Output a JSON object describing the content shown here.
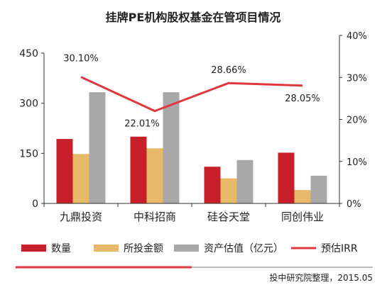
{
  "chart_data": {
    "type": "bar",
    "title": "挂牌PE机构股权基金在管项目情况",
    "categories": [
      "九鼎投资",
      "中科招商",
      "硅谷天堂",
      "同创伟业"
    ],
    "series": [
      {
        "name": "数量",
        "kind": "bar",
        "axis": "left",
        "color": "#c8202a",
        "values": [
          193,
          200,
          110,
          152
        ]
      },
      {
        "name": "所投金额",
        "kind": "bar",
        "axis": "left",
        "color": "#e7b968",
        "values": [
          148,
          165,
          75,
          40
        ]
      },
      {
        "name": "资产估值（亿元）",
        "kind": "bar",
        "axis": "left",
        "color": "#a8a8a8",
        "values": [
          333,
          333,
          130,
          83
        ]
      },
      {
        "name": "预估IRR",
        "kind": "line",
        "axis": "right",
        "color": "#e0383e",
        "values": [
          30.1,
          22.01,
          28.66,
          28.05
        ],
        "labels": [
          "30.10%",
          "22.01%",
          "28.66%",
          "28.05%"
        ]
      }
    ],
    "y_left": {
      "min": 0,
      "max": 450,
      "ticks": [
        0,
        150,
        300,
        450
      ],
      "tick_labels": [
        "0",
        "150",
        "300",
        "450"
      ]
    },
    "y_right": {
      "min": 0,
      "max": 40,
      "ticks": [
        0,
        10,
        20,
        30,
        40
      ],
      "tick_labels": [
        "0%",
        "10%",
        "20%",
        "30%",
        "40%"
      ]
    },
    "legend": {
      "position": "bottom"
    },
    "grid": false
  },
  "footer": {
    "source": "投中研究院整理，2015.05",
    "accent_color": "#e0383e"
  }
}
